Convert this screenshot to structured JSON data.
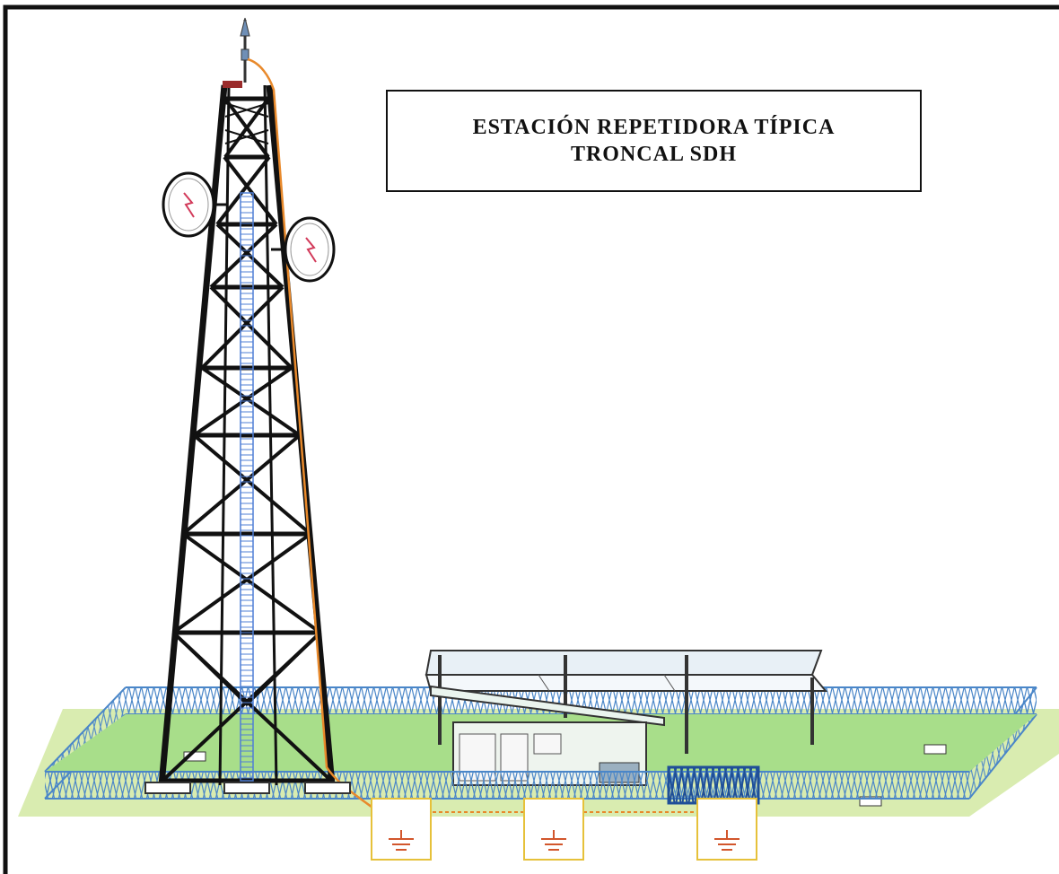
{
  "title": {
    "line1": "ESTACIÓN REPETIDORA TÍPICA",
    "line2": "TRONCAL SDH"
  },
  "components": {
    "tower": "lattice-tower-icon",
    "antennas": [
      "microwave-dish-icon",
      "microwave-dish-icon"
    ],
    "lightning_rod": "lightning-rod-icon",
    "down_conductor": "grounding-conductor-icon",
    "shelter": "equipment-shelter-icon",
    "solar_roof": "solar-panel-roof-icon",
    "fence": "perimeter-fence-icon",
    "ground_pits": [
      "ground-symbol-icon",
      "ground-symbol-icon",
      "ground-symbol-icon"
    ]
  },
  "colors": {
    "tower": "#111111",
    "conductor": "#e8892b",
    "cable_ladder": "#4f7fd6",
    "fence": "#4a86c8",
    "fence_fill": "#7fd27f",
    "ground": "#d9ecb0",
    "pit_border": "#e6c13a",
    "ground_symbol": "#d2562c"
  }
}
